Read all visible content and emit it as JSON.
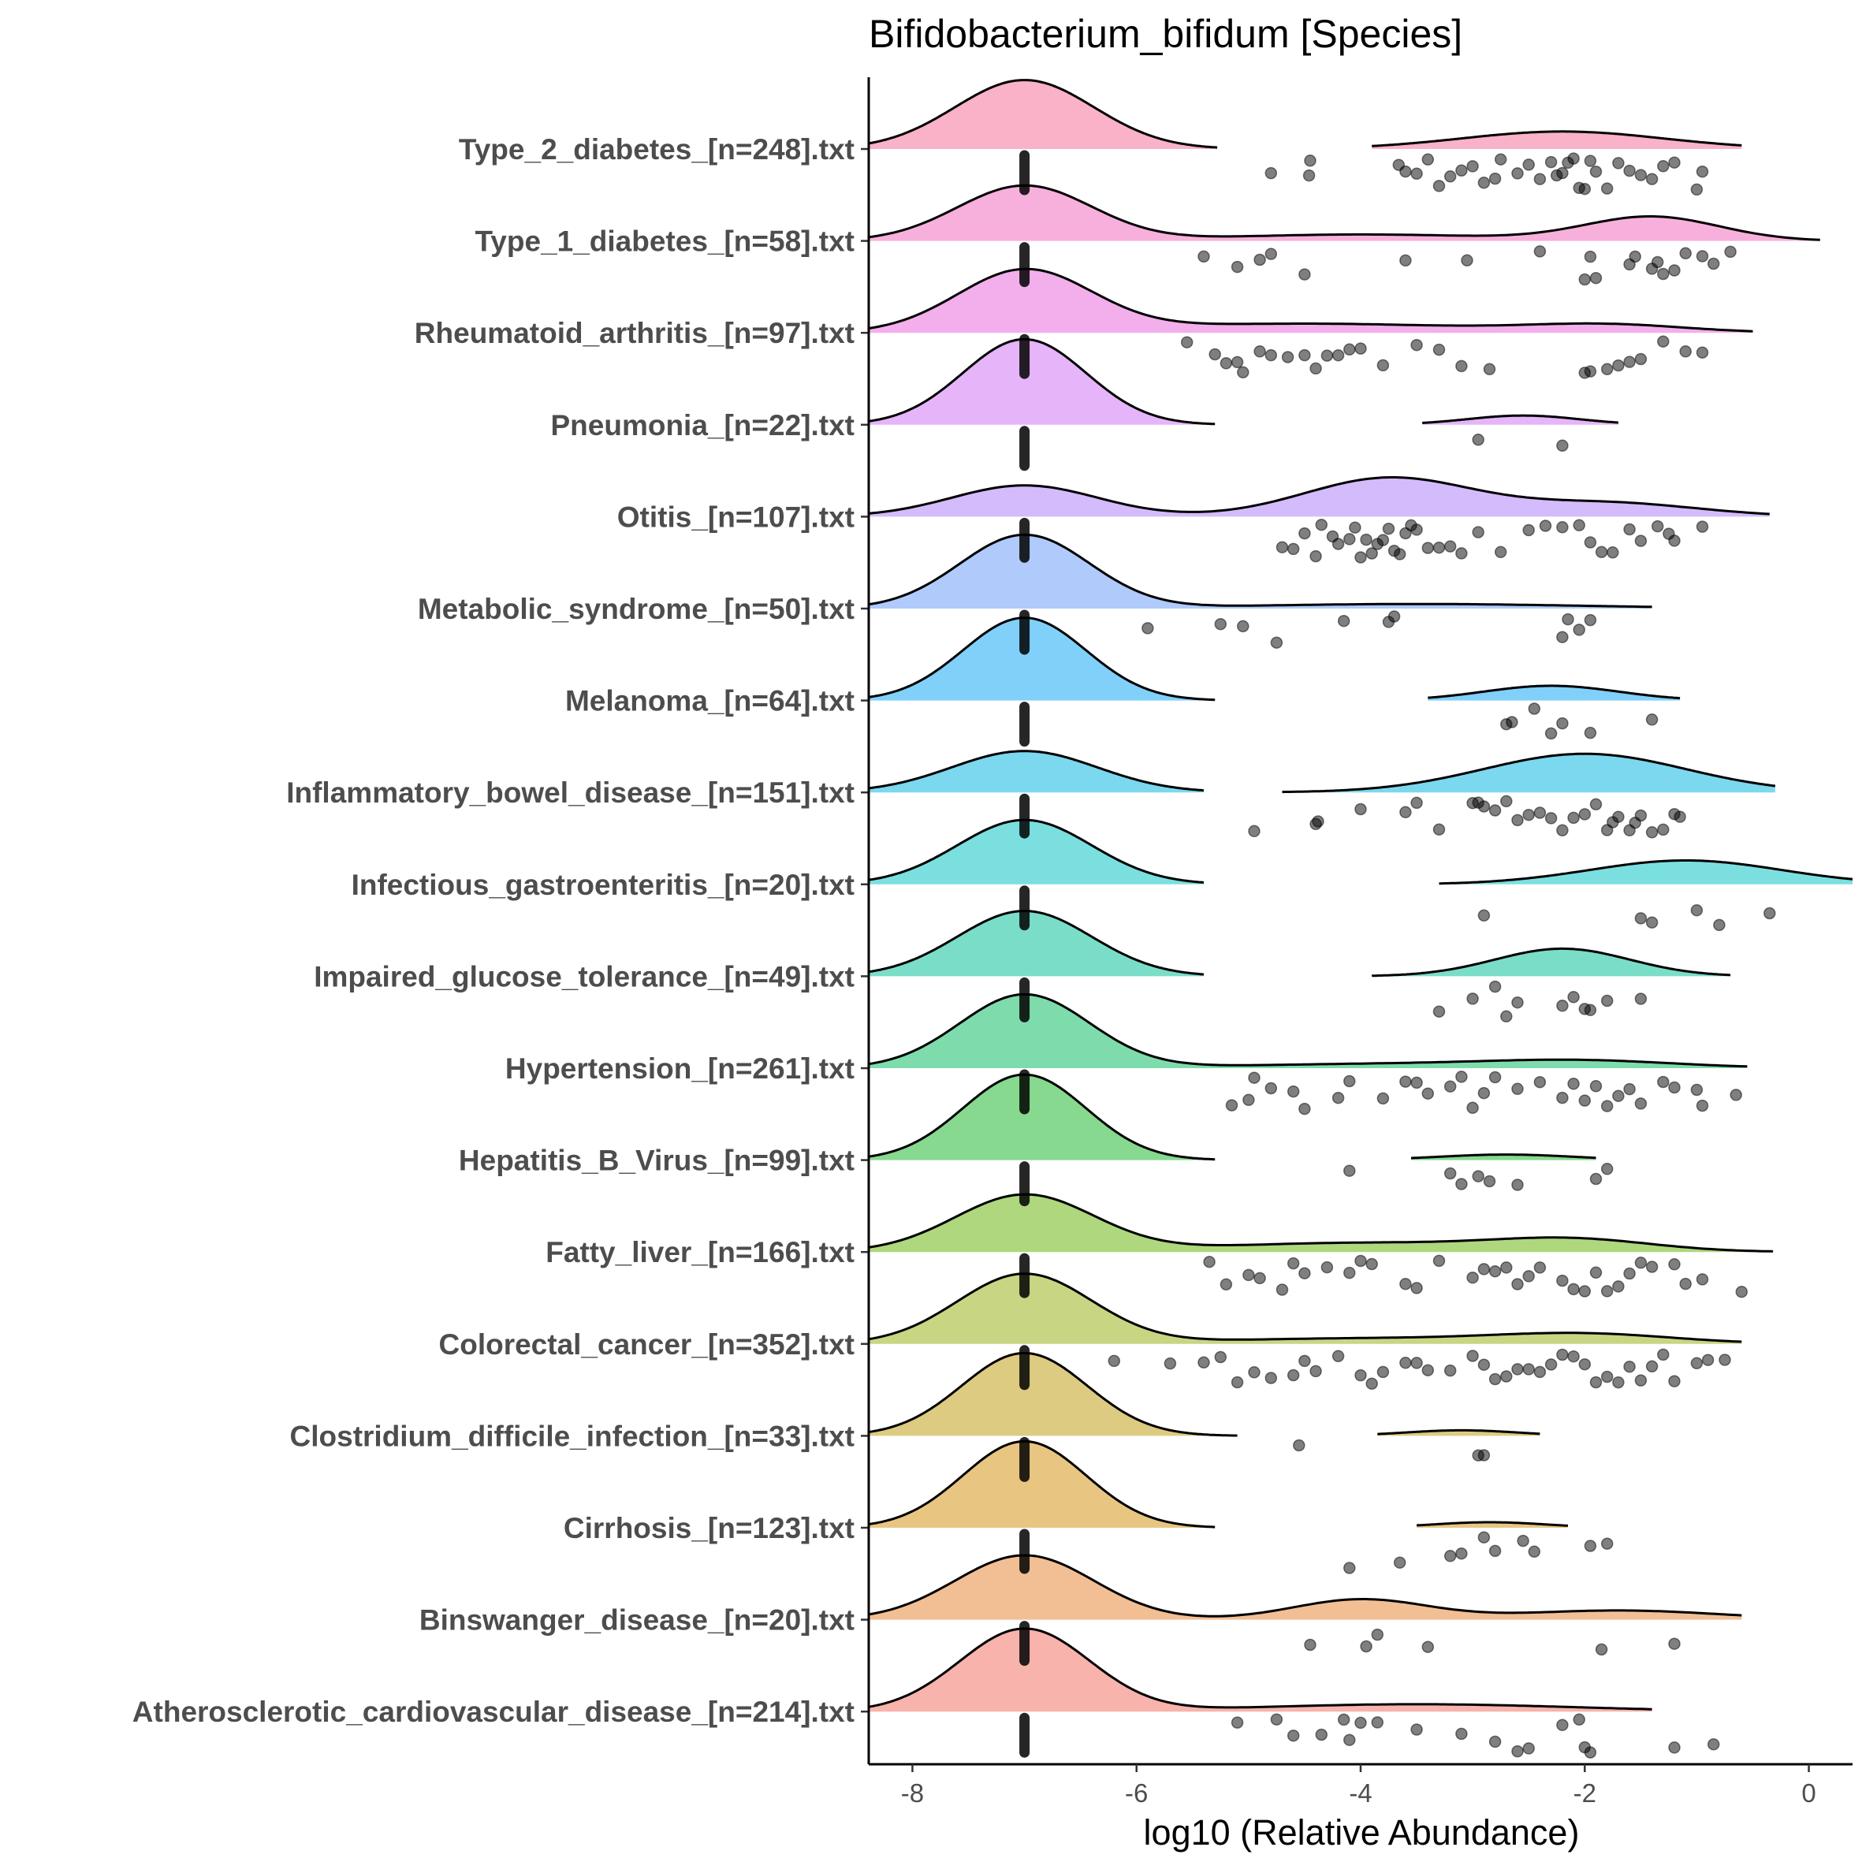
{
  "chart_data": {
    "type": "ridgeline-density-with-jittered-points",
    "title": "Bifidobacterium_bifidum [Species]",
    "xlabel": "log10 (Relative Abundance)",
    "ylabel": "",
    "xlim": [
      -8.39,
      0.39
    ],
    "xticks": [
      -8,
      -6,
      -4,
      -2,
      0
    ],
    "xtick_labels": [
      "-8",
      "-6",
      "-4",
      "-2",
      "0"
    ],
    "grid": false,
    "legend": "none",
    "baseline_value": -7,
    "groups": [
      {
        "label": "Type_2_diabetes_[n=248].txt",
        "color": "#F9B2C8",
        "components": [
          [
            -7,
            0.62,
            0.75
          ],
          [
            -2.2,
            0.9,
            0.19
          ]
        ],
        "segments": [
          [
            -8.39,
            -5.28
          ],
          [
            -3.9,
            -0.6
          ]
        ],
        "points": [
          -4.8,
          -4.46,
          -4.45,
          -3.66,
          -3.6,
          -3.5,
          -3.4,
          -3.3,
          -3.2,
          -3.1,
          -3.0,
          -2.9,
          -2.8,
          -2.75,
          -2.6,
          -2.5,
          -2.4,
          -2.3,
          -2.25,
          -2.2,
          -2.15,
          -2.1,
          -2.05,
          -2.0,
          -1.95,
          -1.9,
          -1.8,
          -1.7,
          -1.6,
          -1.5,
          -1.4,
          -1.3,
          -1.2,
          -1.0,
          -0.95
        ]
      },
      {
        "label": "Type_1_diabetes_[n=58].txt",
        "color": "#F7B0DC",
        "components": [
          [
            -7,
            0.6,
            0.6
          ],
          [
            -4,
            1.2,
            0.07
          ],
          [
            -1.4,
            0.6,
            0.26
          ]
        ],
        "segments": [
          [
            -8.39,
            0.1
          ]
        ],
        "points": [
          -5.4,
          -5.1,
          -4.9,
          -4.8,
          -4.5,
          -3.6,
          -3.05,
          -2.4,
          -2.0,
          -1.95,
          -1.9,
          -1.6,
          -1.55,
          -1.4,
          -1.35,
          -1.3,
          -1.2,
          -1.1,
          -0.95,
          -0.85,
          -0.7
        ]
      },
      {
        "label": "Rheumatoid_arthritis_[n=97].txt",
        "color": "#F3AEEC",
        "components": [
          [
            -7,
            0.6,
            0.67
          ],
          [
            -4.5,
            1.5,
            0.1
          ],
          [
            -1.8,
            0.7,
            0.08
          ]
        ],
        "segments": [
          [
            -8.39,
            -0.5
          ]
        ],
        "points": [
          -5.55,
          -5.3,
          -5.2,
          -5.1,
          -5.05,
          -4.9,
          -4.8,
          -4.65,
          -4.5,
          -4.4,
          -4.3,
          -4.2,
          -4.1,
          -4.0,
          -3.8,
          -3.5,
          -3.3,
          -3.1,
          -2.85,
          -2.0,
          -1.95,
          -1.8,
          -1.7,
          -1.6,
          -1.5,
          -1.3,
          -1.1,
          -0.95
        ]
      },
      {
        "label": "Pneumonia_[n=22].txt",
        "color": "#E6B4F9",
        "components": [
          [
            -7,
            0.55,
            0.93
          ],
          [
            -2.55,
            0.5,
            0.1
          ]
        ],
        "segments": [
          [
            -8.39,
            -5.3
          ],
          [
            -3.45,
            -1.7
          ]
        ],
        "points": [
          -2.95,
          -2.2
        ]
      },
      {
        "label": "Otitis_[n=107].txt",
        "color": "#D4BBFC",
        "components": [
          [
            -7,
            0.65,
            0.34
          ],
          [
            -3.75,
            0.75,
            0.42
          ],
          [
            -1.8,
            0.8,
            0.15
          ]
        ],
        "segments": [
          [
            -8.39,
            -0.35
          ]
        ],
        "points": [
          -4.7,
          -4.6,
          -4.5,
          -4.4,
          -4.35,
          -4.25,
          -4.2,
          -4.1,
          -4.05,
          -4.0,
          -3.95,
          -3.9,
          -3.85,
          -3.8,
          -3.75,
          -3.7,
          -3.65,
          -3.6,
          -3.55,
          -3.5,
          -3.4,
          -3.3,
          -3.2,
          -3.1,
          -2.95,
          -2.75,
          -2.5,
          -2.35,
          -2.2,
          -2.05,
          -1.95,
          -1.85,
          -1.75,
          -1.6,
          -1.5,
          -1.35,
          -1.25,
          -1.2,
          -0.95
        ]
      },
      {
        "label": "Metabolic_syndrome_[n=50].txt",
        "color": "#B0CAFC",
        "components": [
          [
            -7,
            0.58,
            0.8
          ],
          [
            -3.5,
            1.5,
            0.05
          ]
        ],
        "segments": [
          [
            -8.39,
            -1.4
          ]
        ],
        "points": [
          -5.9,
          -5.25,
          -5.05,
          -4.75,
          -4.15,
          -3.75,
          -3.7,
          -2.2,
          -2.15,
          -2.05,
          -1.95
        ]
      },
      {
        "label": "Melanoma_[n=64].txt",
        "color": "#80D0FA",
        "components": [
          [
            -7,
            0.55,
            0.9
          ],
          [
            -2.3,
            0.6,
            0.16
          ]
        ],
        "segments": [
          [
            -8.39,
            -5.3
          ],
          [
            -3.4,
            -1.15
          ]
        ],
        "points": [
          -2.7,
          -2.65,
          -2.45,
          -2.3,
          -2.2,
          -1.95,
          -1.4
        ]
      },
      {
        "label": "Inflammatory_bowel_disease_[n=151].txt",
        "color": "#7BD8EE",
        "components": [
          [
            -7,
            0.65,
            0.45
          ],
          [
            -2.0,
            0.9,
            0.42
          ]
        ],
        "segments": [
          [
            -8.39,
            -5.4
          ],
          [
            -4.7,
            -0.3
          ]
        ],
        "points": [
          -4.95,
          -4.4,
          -4.38,
          -4.0,
          -3.6,
          -3.5,
          -3.3,
          -3.0,
          -2.95,
          -2.9,
          -2.8,
          -2.7,
          -2.6,
          -2.5,
          -2.4,
          -2.3,
          -2.2,
          -2.1,
          -2.0,
          -1.9,
          -1.8,
          -1.75,
          -1.7,
          -1.6,
          -1.55,
          -1.5,
          -1.4,
          -1.3,
          -1.2,
          -1.15
        ]
      },
      {
        "label": "Infectious_gastroenteritis_[n=20].txt",
        "color": "#7BDFE0",
        "components": [
          [
            -7,
            0.6,
            0.7
          ],
          [
            -1.1,
            0.85,
            0.26
          ]
        ],
        "segments": [
          [
            -8.39,
            -5.4
          ],
          [
            -3.3,
            0.39
          ]
        ],
        "points": [
          -2.9,
          -1.5,
          -1.4,
          -1.0,
          -0.8,
          -0.35
        ]
      },
      {
        "label": "Impaired_glucose_tolerance_[n=49].txt",
        "color": "#7ADDC8",
        "components": [
          [
            -7,
            0.6,
            0.71
          ],
          [
            -2.2,
            0.6,
            0.3
          ]
        ],
        "segments": [
          [
            -8.39,
            -5.4
          ],
          [
            -3.9,
            -0.7
          ]
        ],
        "points": [
          -3.3,
          -3.0,
          -2.8,
          -2.7,
          -2.6,
          -2.2,
          -2.1,
          -2.0,
          -1.95,
          -1.8,
          -1.5
        ]
      },
      {
        "label": "Hypertension_[n=261].txt",
        "color": "#7EDCAC",
        "components": [
          [
            -7,
            0.58,
            0.8
          ],
          [
            -3.5,
            1.5,
            0.05
          ],
          [
            -2,
            0.8,
            0.06
          ]
        ],
        "segments": [
          [
            -8.39,
            -0.55
          ]
        ],
        "points": [
          -5.15,
          -5.0,
          -4.95,
          -4.8,
          -4.6,
          -4.5,
          -4.2,
          -4.1,
          -3.8,
          -3.6,
          -3.5,
          -3.4,
          -3.2,
          -3.1,
          -3.0,
          -2.9,
          -2.8,
          -2.6,
          -2.4,
          -2.2,
          -2.1,
          -2.0,
          -1.9,
          -1.8,
          -1.7,
          -1.6,
          -1.5,
          -1.3,
          -1.2,
          -1.0,
          -0.95,
          -0.65
        ]
      },
      {
        "label": "Hepatitis_B_Virus_[n=99].txt",
        "color": "#86D98F",
        "components": [
          [
            -7,
            0.55,
            0.93
          ],
          [
            -2.7,
            0.6,
            0.06
          ]
        ],
        "segments": [
          [
            -8.39,
            -5.3
          ],
          [
            -3.55,
            -1.9
          ]
        ],
        "points": [
          -4.1,
          -3.2,
          -3.1,
          -2.95,
          -2.85,
          -2.6,
          -1.9,
          -1.8
        ]
      },
      {
        "label": "Fatty_liver_[n=166].txt",
        "color": "#AED77E",
        "components": [
          [
            -7,
            0.62,
            0.62
          ],
          [
            -4,
            1.3,
            0.1
          ],
          [
            -2.1,
            0.7,
            0.12
          ]
        ],
        "segments": [
          [
            -8.39,
            -0.32
          ]
        ],
        "points": [
          -5.35,
          -5.2,
          -5.0,
          -4.9,
          -4.7,
          -4.6,
          -4.5,
          -4.3,
          -4.1,
          -4.0,
          -3.9,
          -3.6,
          -3.5,
          -3.3,
          -3.0,
          -2.9,
          -2.8,
          -2.7,
          -2.6,
          -2.5,
          -2.4,
          -2.2,
          -2.1,
          -2.0,
          -1.9,
          -1.8,
          -1.7,
          -1.6,
          -1.5,
          -1.4,
          -1.2,
          -1.1,
          -0.95,
          -0.6
        ]
      },
      {
        "label": "Colorectal_cancer_[n=352].txt",
        "color": "#C8D583",
        "components": [
          [
            -7,
            0.6,
            0.76
          ],
          [
            -4,
            1.3,
            0.06
          ],
          [
            -2,
            0.8,
            0.1
          ]
        ],
        "segments": [
          [
            -8.39,
            -0.6
          ]
        ],
        "points": [
          -6.2,
          -5.7,
          -5.4,
          -5.25,
          -5.1,
          -4.95,
          -4.8,
          -4.6,
          -4.5,
          -4.4,
          -4.2,
          -4.0,
          -3.9,
          -3.8,
          -3.6,
          -3.5,
          -3.4,
          -3.2,
          -3.0,
          -2.9,
          -2.8,
          -2.7,
          -2.6,
          -2.5,
          -2.4,
          -2.3,
          -2.2,
          -2.1,
          -2.0,
          -1.9,
          -1.8,
          -1.7,
          -1.6,
          -1.5,
          -1.4,
          -1.3,
          -1.2,
          -1.0,
          -0.9,
          -0.75
        ]
      },
      {
        "label": "Clostridium_difficile_infection_[n=33].txt",
        "color": "#DCCB80",
        "components": [
          [
            -7,
            0.56,
            0.9
          ],
          [
            -3.1,
            0.5,
            0.06
          ]
        ],
        "segments": [
          [
            -8.39,
            -5.1
          ],
          [
            -3.85,
            -2.4
          ]
        ],
        "points": [
          -4.55,
          -2.95,
          -2.9
        ]
      },
      {
        "label": "Cirrhosis_[n=123].txt",
        "color": "#E8C682",
        "components": [
          [
            -7,
            0.55,
            0.94
          ],
          [
            -2.85,
            0.5,
            0.06
          ]
        ],
        "segments": [
          [
            -8.39,
            -5.3
          ],
          [
            -3.5,
            -2.15
          ]
        ],
        "points": [
          -4.1,
          -3.65,
          -3.2,
          -3.1,
          -2.9,
          -2.8,
          -2.55,
          -2.45,
          -1.95,
          -1.8
        ]
      },
      {
        "label": "Binswanger_disease_[n=20].txt",
        "color": "#F2BF94",
        "components": [
          [
            -7,
            0.62,
            0.7
          ],
          [
            -4,
            0.6,
            0.22
          ],
          [
            -1.7,
            0.9,
            0.1
          ]
        ],
        "segments": [
          [
            -8.39,
            -0.6
          ]
        ],
        "points": [
          -4.45,
          -3.95,
          -3.85,
          -3.4,
          -1.85,
          -1.2
        ]
      },
      {
        "label": "Atherosclerotic_cardiovascular_disease_[n=214].txt",
        "color": "#F7B3AC",
        "components": [
          [
            -7,
            0.58,
            0.9
          ],
          [
            -3.5,
            1.4,
            0.08
          ]
        ],
        "segments": [
          [
            -8.39,
            -1.4
          ]
        ],
        "points": [
          -5.1,
          -4.75,
          -4.6,
          -4.35,
          -4.15,
          -4.1,
          -4.0,
          -3.85,
          -3.5,
          -3.1,
          -2.8,
          -2.6,
          -2.5,
          -2.2,
          -2.05,
          -2.0,
          -1.95,
          -1.2,
          -0.85
        ]
      }
    ]
  }
}
